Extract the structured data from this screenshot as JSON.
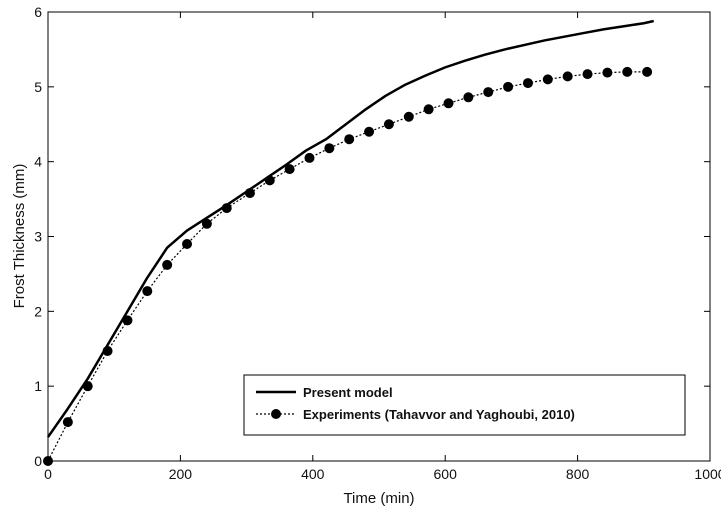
{
  "chart_data": {
    "type": "line",
    "xlabel": "Time (min)",
    "ylabel": "Frost Thickness (mm)",
    "xlim": [
      0,
      1000
    ],
    "ylim": [
      0,
      6
    ],
    "xticks": [
      "0",
      "200",
      "400",
      "600",
      "800",
      "1000"
    ],
    "yticks": [
      "0",
      "1",
      "2",
      "3",
      "4",
      "5",
      "6"
    ],
    "grid": false,
    "legend_position": "bottom-right",
    "series": [
      {
        "name": "Present model",
        "style": "solid",
        "color": "#000000",
        "x": [
          0,
          30,
          60,
          90,
          120,
          150,
          180,
          210,
          240,
          270,
          300,
          330,
          360,
          390,
          420,
          450,
          480,
          510,
          540,
          570,
          600,
          630,
          660,
          690,
          720,
          750,
          780,
          810,
          840,
          870,
          900,
          915
        ],
        "y": [
          0.32,
          0.7,
          1.1,
          1.55,
          2.0,
          2.45,
          2.85,
          3.08,
          3.25,
          3.42,
          3.6,
          3.78,
          3.96,
          4.15,
          4.3,
          4.5,
          4.7,
          4.88,
          5.03,
          5.15,
          5.26,
          5.35,
          5.43,
          5.5,
          5.56,
          5.62,
          5.67,
          5.72,
          5.77,
          5.81,
          5.85,
          5.88
        ]
      },
      {
        "name": "Experiments (Tahavvor  and Yaghoubi, 2010)",
        "style": "dotted-circle-markers",
        "color": "#000000",
        "x": [
          0,
          30,
          60,
          90,
          120,
          150,
          180,
          210,
          240,
          270,
          305,
          335,
          365,
          395,
          425,
          455,
          485,
          515,
          545,
          575,
          605,
          635,
          665,
          695,
          725,
          755,
          785,
          815,
          845,
          875,
          905
        ],
        "y": [
          0.0,
          0.52,
          1.0,
          1.47,
          1.88,
          2.27,
          2.62,
          2.9,
          3.17,
          3.38,
          3.58,
          3.75,
          3.9,
          4.05,
          4.18,
          4.3,
          4.4,
          4.5,
          4.6,
          4.7,
          4.78,
          4.86,
          4.93,
          5.0,
          5.05,
          5.1,
          5.14,
          5.17,
          5.19,
          5.2,
          5.2
        ]
      }
    ]
  }
}
